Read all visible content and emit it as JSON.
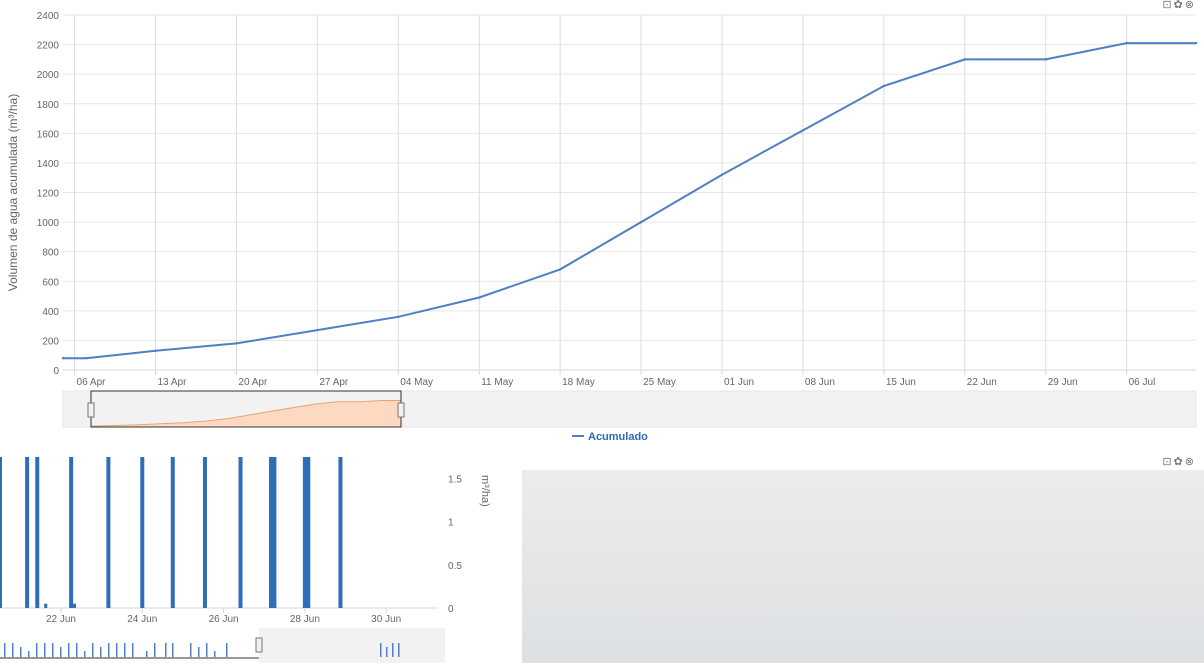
{
  "toolbar_top": {
    "icons": "⊡✿⊗"
  },
  "toolbar_bottom": {
    "icons": "⊡✿⊗"
  },
  "chart_data": [
    {
      "type": "line",
      "ylabel": "Volumen de agua acumulada (m³/ha)",
      "ylim": [
        0,
        2400
      ],
      "yticks": [
        0,
        200,
        400,
        600,
        800,
        1000,
        1200,
        1400,
        1600,
        1800,
        2000,
        2200,
        2400
      ],
      "xlim": [
        "2014-04-05",
        "2014-07-12"
      ],
      "xticks": [
        "06 Apr",
        "13 Apr",
        "20 Apr",
        "27 Apr",
        "04 May",
        "11 May",
        "18 May",
        "25 May",
        "01 Jun",
        "08 Jun",
        "15 Jun",
        "22 Jun",
        "29 Jun",
        "06 Jul"
      ],
      "grid": true,
      "legend": "bottom-center",
      "series": [
        {
          "name": "Acumulado",
          "color": "#4f7fc4",
          "x": [
            "2014-04-05",
            "2014-04-07",
            "2014-04-13",
            "2014-04-20",
            "2014-04-27",
            "2014-05-04",
            "2014-05-11",
            "2014-05-18",
            "2014-05-25",
            "2014-06-01",
            "2014-06-08",
            "2014-06-15",
            "2014-06-22",
            "2014-06-29",
            "2014-07-06",
            "2014-07-12"
          ],
          "y": [
            80,
            80,
            130,
            180,
            270,
            360,
            490,
            680,
            1000,
            1320,
            1620,
            1920,
            2100,
            2100,
            2210,
            2210
          ]
        }
      ],
      "navigator": {
        "fill": "#fcd9c0",
        "stroke": "#e8a574"
      }
    },
    {
      "type": "bar",
      "ylabel": "m³/ha)",
      "ylim": [
        0,
        1.75
      ],
      "yticks": [
        0,
        0.5,
        1,
        1.5
      ],
      "ytick_labels": [
        "0",
        "0.5",
        "1",
        "1.5"
      ],
      "xticks": [
        "22 Jun",
        "24 Jun",
        "26 Jun",
        "28 Jun",
        "30 Jun"
      ],
      "grid": false,
      "color": "#2e6db8",
      "x": [
        "2014-06-20T12:00",
        "2014-06-21T04:00",
        "2014-06-21T10:00",
        "2014-06-21T15:00",
        "2014-06-22T06:00",
        "2014-06-22T08:00",
        "2014-06-23T04:00",
        "2014-06-24T00:00",
        "2014-06-24T18:00",
        "2014-06-25T13:00",
        "2014-06-26T10:00",
        "2014-06-27T04:00",
        "2014-06-27T06:00",
        "2014-06-28T00:00",
        "2014-06-28T02:00",
        "2014-06-28T21:00"
      ],
      "values": [
        1.75,
        1.75,
        1.75,
        0.05,
        1.75,
        0.05,
        1.75,
        1.75,
        1.75,
        1.75,
        1.75,
        1.75,
        1.75,
        1.75,
        1.75,
        1.75
      ]
    }
  ]
}
